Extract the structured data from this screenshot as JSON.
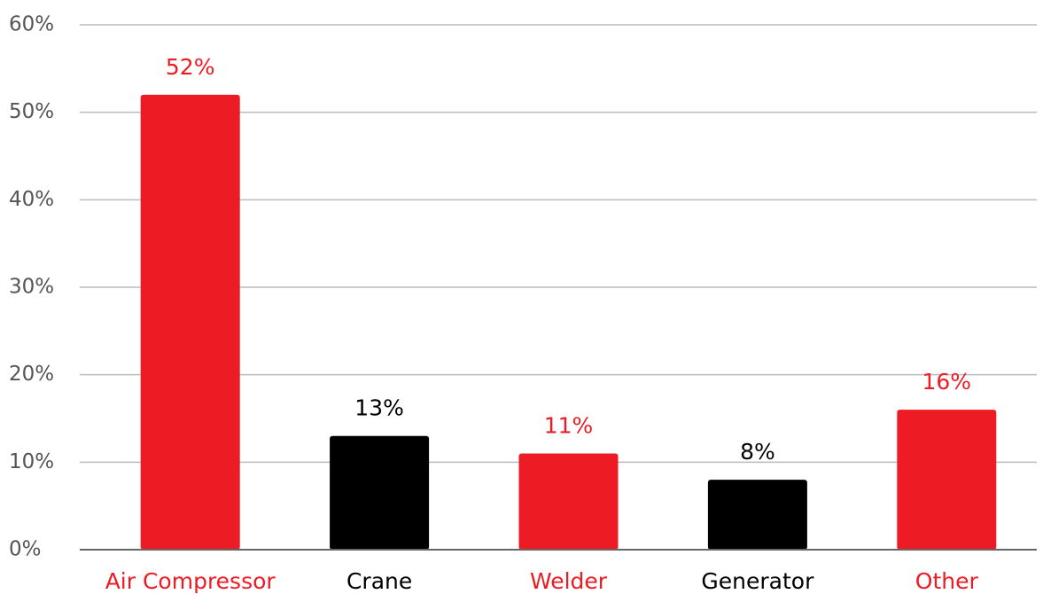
{
  "chart_data": {
    "type": "bar",
    "categories": [
      "Air Compressor",
      "Crane",
      "Welder",
      "Generator",
      "Other"
    ],
    "values": [
      52,
      13,
      11,
      8,
      16
    ],
    "value_labels": [
      "52%",
      "13%",
      "11%",
      "8%",
      "16%"
    ],
    "colors": [
      "#ed1c24",
      "#000000",
      "#ed1c24",
      "#000000",
      "#ed1c24"
    ],
    "ylim": [
      0,
      60
    ],
    "yticks": [
      {
        "value": 0,
        "label": "0%"
      },
      {
        "value": 10,
        "label": "10%"
      },
      {
        "value": 20,
        "label": "20%"
      },
      {
        "value": 30,
        "label": "30%"
      },
      {
        "value": 40,
        "label": "40%"
      },
      {
        "value": 50,
        "label": "50%"
      },
      {
        "value": 60,
        "label": "60%"
      }
    ],
    "grid": true
  }
}
